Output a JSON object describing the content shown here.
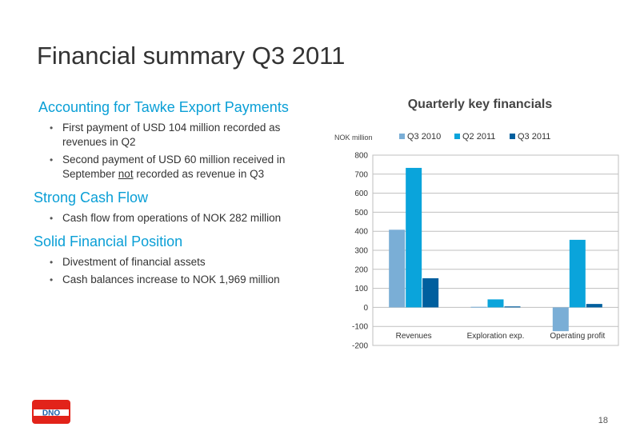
{
  "slide": {
    "title": "Financial summary Q3 2011",
    "page_number": "18",
    "logo_text": "DNO",
    "brand_colors": {
      "red": "#e2231a",
      "blue": "#0a9fd6"
    }
  },
  "sections": [
    {
      "heading": "Accounting for Tawke Export Payments",
      "points": [
        {
          "parts": [
            "First payment of USD 104 million recorded as revenues in Q2"
          ]
        },
        {
          "parts": [
            "Second payment of USD 60 million received in September ",
            "not",
            " recorded as revenue in Q3"
          ]
        }
      ]
    },
    {
      "heading": "Strong Cash Flow",
      "points": [
        {
          "parts": [
            "Cash flow from operations of NOK 282 million"
          ]
        }
      ]
    },
    {
      "heading": "Solid Financial Position",
      "points": [
        {
          "parts": [
            "Divestment of financial assets"
          ]
        },
        {
          "parts": [
            "Cash balances increase to NOK 1,969 million"
          ]
        }
      ]
    }
  ],
  "chart_data": {
    "type": "bar",
    "title": "Quarterly key financials",
    "ylabel": "NOK million",
    "categories": [
      "Revenues",
      "Exploration exp.",
      "Operating profit"
    ],
    "series": [
      {
        "name": "Q3 2010",
        "color": "#7aaed6",
        "values": [
          408,
          3,
          -125
        ]
      },
      {
        "name": "Q2 2011",
        "color": "#0aa4db",
        "values": [
          733,
          42,
          355
        ]
      },
      {
        "name": "Q3 2011",
        "color": "#005f9e",
        "values": [
          153,
          5,
          18
        ]
      }
    ],
    "ylim": [
      -200,
      800
    ],
    "yticks": [
      -200,
      -100,
      0,
      100,
      200,
      300,
      400,
      500,
      600,
      700,
      800
    ],
    "grid": true,
    "legend": "top"
  }
}
